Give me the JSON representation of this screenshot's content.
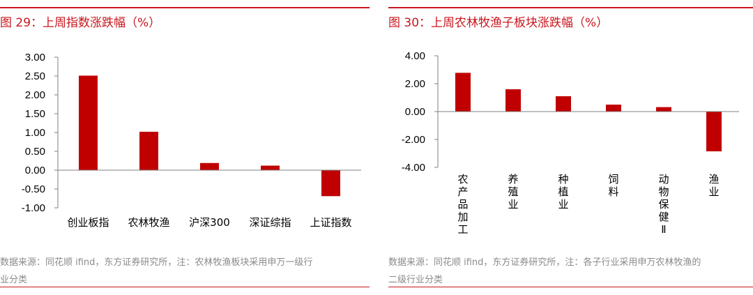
{
  "left": {
    "title": "图 29：上周指数涨跌幅（%）",
    "source_line1": "数据来源：同花顺 ifind，东方证券研究所，注：农林牧渔板块采用申万一级行",
    "source_line2": "业分类"
  },
  "right": {
    "title": "图 30：上周农林牧渔子板块涨跌幅（%）",
    "source_line1": "数据来源：同花顺  ifind，东方证券研究所，注：各子行业采用申万农林牧渔的",
    "source_line2": "二级行业分类"
  },
  "colors": {
    "bar": "#c00000",
    "accent": "#c8161d"
  },
  "chart_data": [
    {
      "type": "bar",
      "title": "图 29：上周指数涨跌幅（%）",
      "categories": [
        "创业板指",
        "农林牧渔",
        "沪深300",
        "深证综指",
        "上证指数"
      ],
      "values": [
        2.51,
        1.02,
        0.19,
        0.12,
        -0.69
      ],
      "ylim": [
        -1.0,
        3.0
      ],
      "yticks": [
        "3.00",
        "2.50",
        "2.00",
        "1.50",
        "1.00",
        "0.50",
        "0.00",
        "-0.50",
        "-1.00"
      ],
      "ytick_values": [
        3.0,
        2.5,
        2.0,
        1.5,
        1.0,
        0.5,
        0.0,
        -0.5,
        -1.0
      ],
      "label_orientation": "horizontal",
      "grid": false,
      "legend": "none"
    },
    {
      "type": "bar",
      "title": "图 30：上周农林牧渔子板块涨跌幅（%）",
      "categories": [
        "农产品加工",
        "养殖业",
        "种植业",
        "饲料",
        "动物保健Ⅱ",
        "渔业"
      ],
      "values": [
        2.78,
        1.6,
        1.1,
        0.5,
        0.32,
        -2.85
      ],
      "ylim": [
        -4.0,
        4.0
      ],
      "yticks": [
        "4.00",
        "2.00",
        "0.00",
        "-2.00",
        "-4.00"
      ],
      "ytick_values": [
        4.0,
        2.0,
        0.0,
        -2.0,
        -4.0
      ],
      "label_orientation": "vertical",
      "grid": false,
      "legend": "none"
    }
  ]
}
